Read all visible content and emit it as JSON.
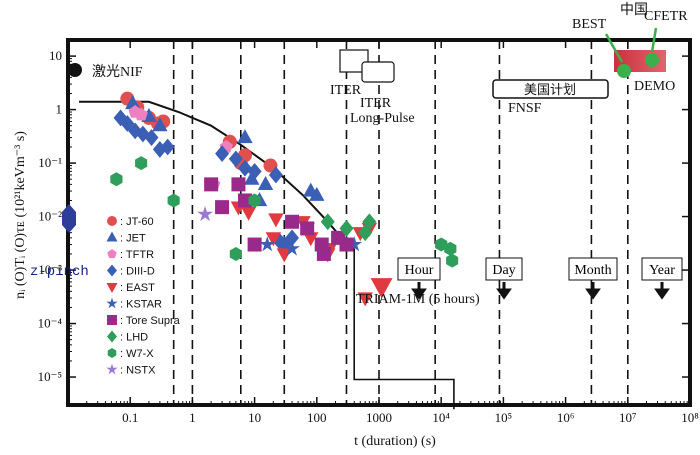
{
  "chart_data": {
    "type": "scatter",
    "xlabel": "t (duration) (s)",
    "ylabel": "nᵢ (O)Tᵢ (O)τᴇ (10²¹keVm⁻³ s)",
    "xscale": "log",
    "yscale": "log",
    "xlim": [
      0.01,
      100000000
    ],
    "ylim": [
      3e-06,
      20
    ],
    "x_ticks": [
      "0.1",
      "1",
      "10",
      "100",
      "1000",
      "10⁴",
      "10⁵",
      "10⁶",
      "10⁷",
      "10⁸"
    ],
    "y_ticks": [
      "10",
      "1",
      "10⁻¹",
      "10⁻²",
      "10⁻³",
      "10⁻⁴",
      "10⁻⁵"
    ],
    "legend_position": "left",
    "series": [
      {
        "name": ": JT-60",
        "marker": "circle",
        "color": "#e05050",
        "points": [
          [
            0.09,
            1.6
          ],
          [
            0.13,
            1.1
          ],
          [
            0.2,
            0.7
          ],
          [
            0.28,
            0.55
          ],
          [
            0.34,
            0.6
          ],
          [
            4,
            0.25
          ],
          [
            6,
            0.1
          ],
          [
            7,
            0.14
          ],
          [
            18,
            0.09
          ]
        ]
      },
      {
        "name": ": JET",
        "marker": "triangle-up",
        "color": "#3a5fb5",
        "points": [
          [
            0.11,
            1.3
          ],
          [
            0.2,
            0.75
          ],
          [
            0.3,
            0.5
          ],
          [
            7,
            0.3
          ],
          [
            9,
            0.05
          ],
          [
            15,
            0.04
          ],
          [
            80,
            0.03
          ],
          [
            100,
            0.025
          ],
          [
            12,
            0.02
          ]
        ]
      },
      {
        "name": ": TFTR",
        "marker": "pentagon",
        "color": "#ee80c0",
        "points": [
          [
            0.12,
            0.9
          ],
          [
            0.15,
            0.8
          ],
          [
            2.2,
            0.04
          ],
          [
            3.5,
            0.2
          ]
        ]
      },
      {
        "name": ": DIII-D",
        "marker": "diamond",
        "color": "#3a5fb5",
        "points": [
          [
            0.07,
            0.7
          ],
          [
            0.09,
            0.55
          ],
          [
            0.12,
            0.4
          ],
          [
            0.16,
            0.35
          ],
          [
            0.22,
            0.3
          ],
          [
            0.3,
            0.18
          ],
          [
            0.4,
            0.2
          ],
          [
            3,
            0.15
          ],
          [
            5,
            0.12
          ],
          [
            7,
            0.08
          ],
          [
            10,
            0.07
          ],
          [
            22,
            0.06
          ],
          [
            30,
            0.003
          ],
          [
            40,
            0.004
          ],
          [
            25,
            0.0035
          ]
        ]
      },
      {
        "name": ": EAST",
        "marker": "triangle-down",
        "color": "#e03a40",
        "points": [
          [
            5.5,
            0.015
          ],
          [
            8,
            0.012
          ],
          [
            22,
            0.009
          ],
          [
            20,
            0.004
          ],
          [
            30,
            0.002
          ],
          [
            60,
            0.008
          ],
          [
            70,
            0.006
          ],
          [
            80,
            0.004
          ],
          [
            150,
            0.002
          ],
          [
            160,
            0.0025
          ],
          [
            500,
            0.005
          ],
          [
            700,
            0.006
          ],
          [
            600,
            0.0003
          ],
          [
            1100,
            0.0005
          ]
        ]
      },
      {
        "name": ": KSTAR",
        "marker": "star",
        "color": "#3a5fb5",
        "points": [
          [
            16,
            0.003
          ],
          [
            40,
            0.0025
          ],
          [
            400,
            0.003
          ]
        ]
      },
      {
        "name": ": Tore Supra",
        "marker": "square",
        "color": "#9a2a8a",
        "points": [
          [
            2,
            0.04
          ],
          [
            3,
            0.015
          ],
          [
            5.5,
            0.04
          ],
          [
            7,
            0.02
          ],
          [
            10,
            0.003
          ],
          [
            40,
            0.008
          ],
          [
            70,
            0.006
          ],
          [
            120,
            0.003
          ],
          [
            130,
            0.002
          ],
          [
            220,
            0.004
          ],
          [
            300,
            0.003
          ]
        ]
      },
      {
        "name": ": LHD",
        "marker": "diamond",
        "color": "#2e9e5a",
        "points": [
          [
            150,
            0.008
          ],
          [
            300,
            0.006
          ],
          [
            600,
            0.005
          ],
          [
            700,
            0.008
          ]
        ]
      },
      {
        "name": ": W7-X",
        "marker": "hexagon",
        "color": "#2e9e5a",
        "points": [
          [
            0.06,
            0.05
          ],
          [
            0.15,
            0.1
          ],
          [
            0.5,
            0.02
          ],
          [
            5,
            0.002
          ],
          [
            10,
            0.02
          ],
          [
            10000,
            0.003
          ],
          [
            14000,
            0.0025
          ],
          [
            15000,
            0.0015
          ]
        ]
      },
      {
        "name": ": NSTX",
        "marker": "star",
        "color": "#9a7ad0",
        "points": [
          [
            1.6,
            0.011
          ]
        ]
      }
    ],
    "boundary_curve": [
      [
        0.015,
        1.4
      ],
      [
        0.2,
        1.4
      ],
      [
        0.6,
        0.9
      ],
      [
        2,
        0.5
      ],
      [
        6,
        0.22
      ],
      [
        20,
        0.08
      ],
      [
        60,
        0.025
      ],
      [
        150,
        0.008
      ],
      [
        250,
        0.004
      ],
      [
        400,
        0.0025
      ]
    ],
    "triam_line": [
      [
        400,
        0.0025
      ],
      [
        400,
        9e-06
      ],
      [
        16000,
        9e-06
      ],
      [
        16000,
        2.5e-06
      ]
    ],
    "vertical_dashed_x": [
      0.5,
      1,
      6,
      30,
      300,
      1000,
      8000,
      86400,
      2600000,
      10000000
    ],
    "annotations": {
      "nif": "激光NIF",
      "zpinch": "z-pinch",
      "iter": "ITER",
      "iter_long": "ITER",
      "iter_long2": "Long-Pulse",
      "us_plan": "美国计划",
      "fnsf": "FNSF",
      "triam": "TRIAM-1M (5 hours)",
      "best": "BEST",
      "china": "中国",
      "cfetr": "CFETR",
      "demo": "DEMO",
      "hour": "Hour",
      "day": "Day",
      "month": "Month",
      "year": "Year"
    }
  }
}
